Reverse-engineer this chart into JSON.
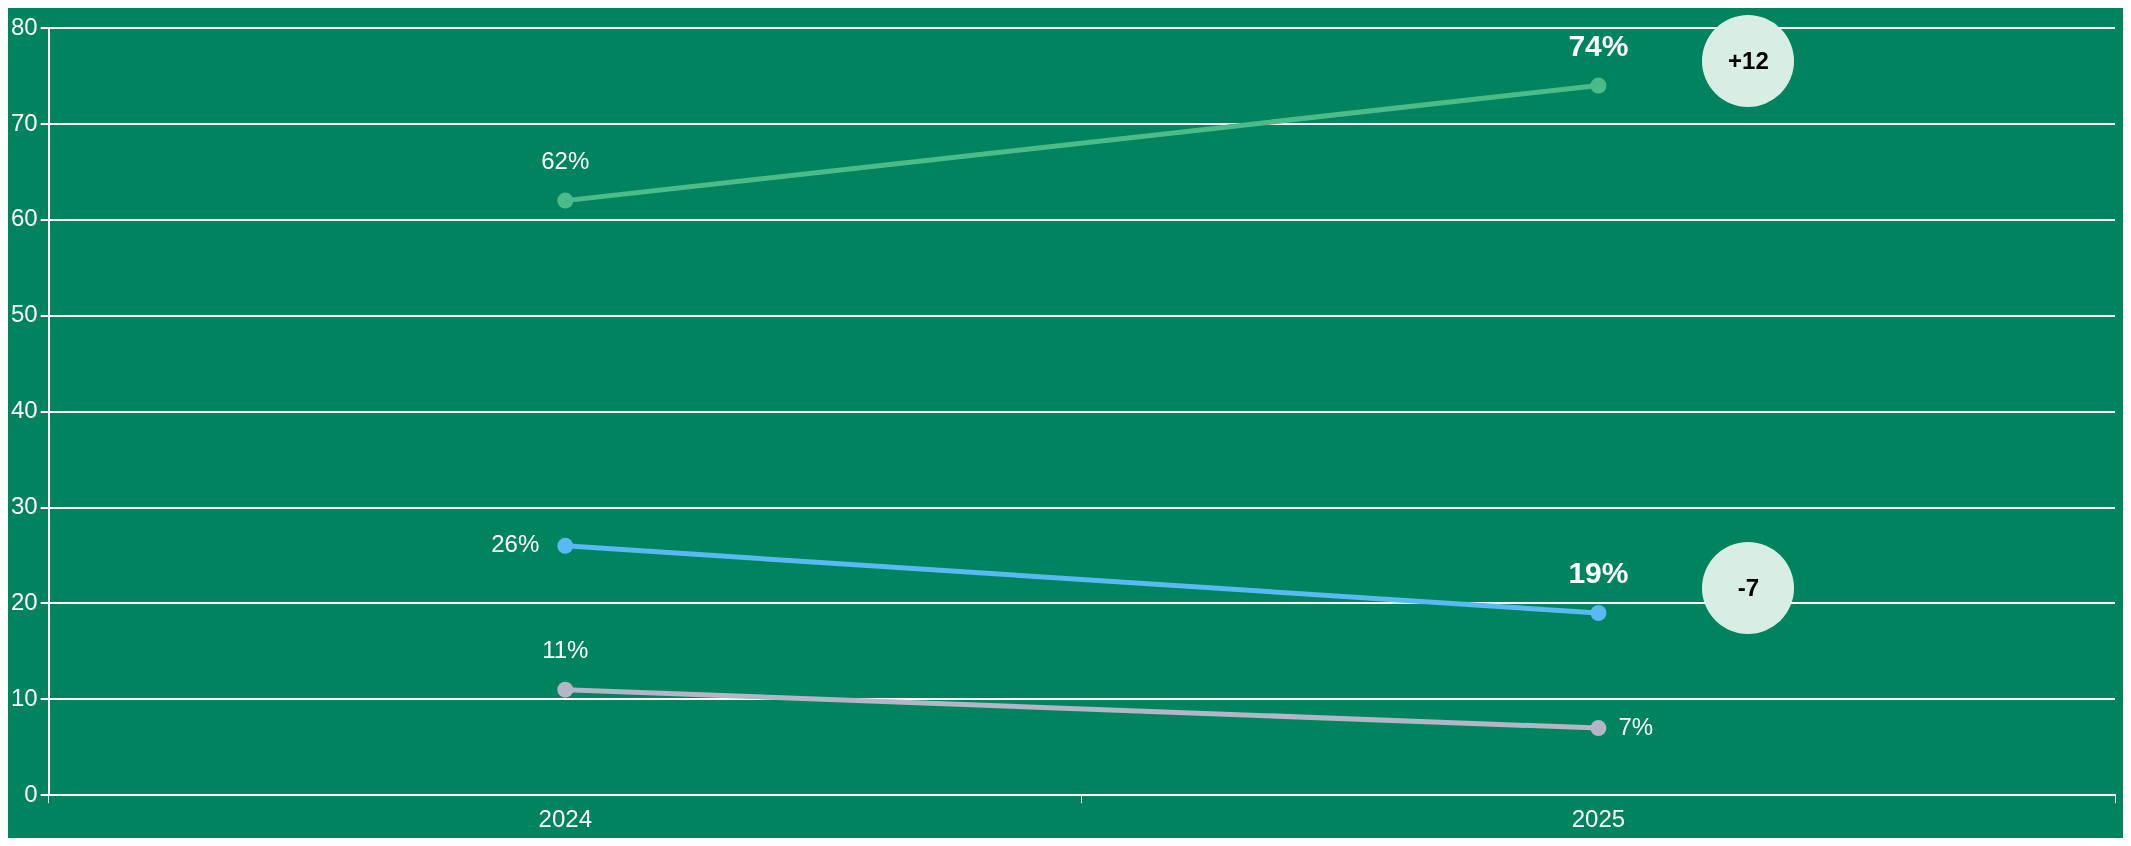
{
  "chart_data": {
    "type": "line",
    "categories": [
      "2024",
      "2025"
    ],
    "series": [
      {
        "color": "#4dbb88",
        "values": [
          62,
          74
        ],
        "value_labels": [
          "62%",
          "74%"
        ]
      },
      {
        "color": "#5ab8f2",
        "values": [
          26,
          19
        ],
        "value_labels": [
          "26%",
          "19%"
        ]
      },
      {
        "color": "#b3b6c6",
        "values": [
          11,
          7
        ],
        "value_labels": [
          "11%",
          "7%"
        ]
      }
    ],
    "ylim": [
      0,
      80
    ],
    "yticks": [
      0,
      10,
      20,
      30,
      40,
      50,
      60,
      70,
      80
    ],
    "grid": "y",
    "legend": false,
    "marker": "circle",
    "line_style": "solid",
    "annotations": [
      "+12",
      "-7"
    ]
  }
}
